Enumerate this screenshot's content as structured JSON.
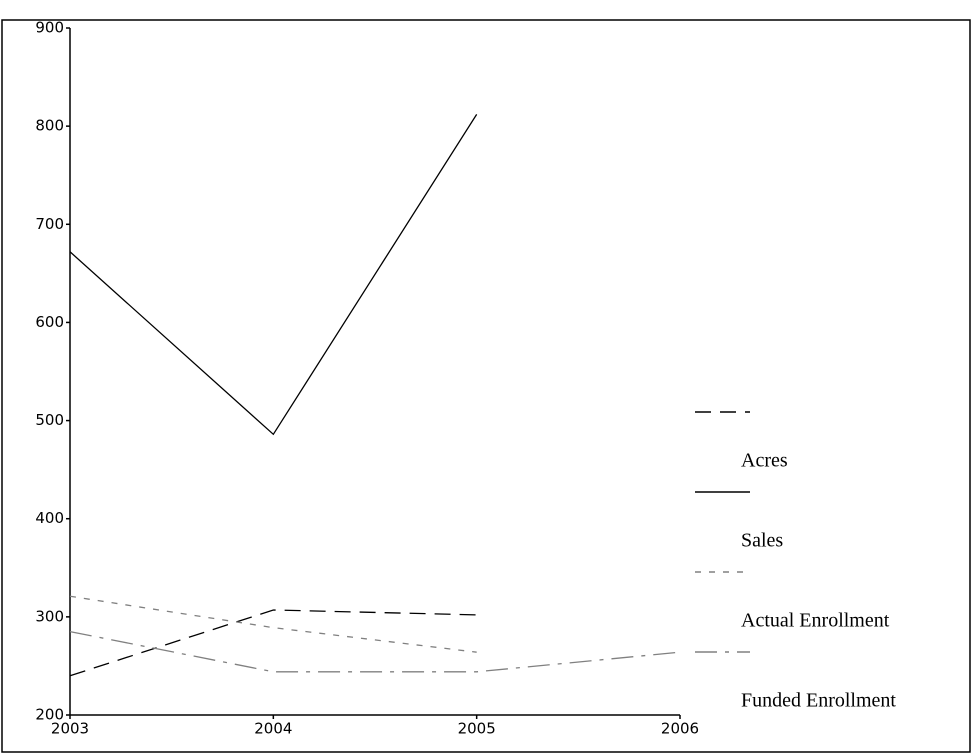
{
  "chart_data": {
    "type": "line",
    "x": [
      2003,
      2004,
      2005,
      2006
    ],
    "xlim": [
      2003,
      2006
    ],
    "xticks": [
      2003,
      2004,
      2005,
      2006
    ],
    "ylim": [
      200,
      900
    ],
    "yticks": [
      200,
      300,
      400,
      500,
      600,
      700,
      800,
      900
    ],
    "grid": false,
    "legend": "right",
    "series": [
      {
        "name": "Acres",
        "color": "#000000",
        "values": [
          240,
          307,
          302,
          null
        ]
      },
      {
        "name": "Sales",
        "color": "#000000",
        "values": [
          672,
          486,
          812,
          null
        ]
      },
      {
        "name": "Actual Enrollment",
        "color": "#808080",
        "values": [
          321,
          289,
          264,
          null
        ]
      },
      {
        "name": "Funded Enrollment",
        "color": "#808080",
        "values": [
          285,
          244,
          244,
          264
        ]
      }
    ]
  }
}
